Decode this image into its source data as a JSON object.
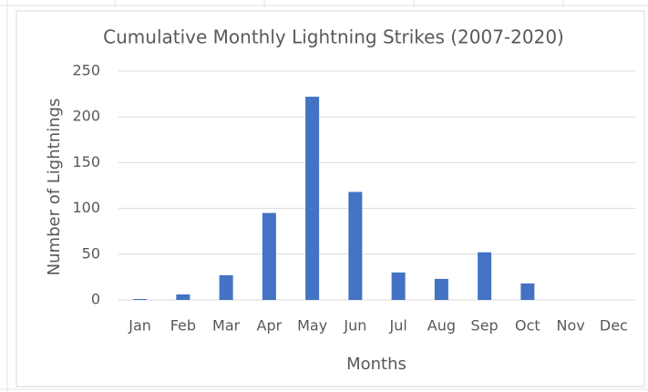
{
  "chart_data": {
    "type": "bar",
    "title": "Cumulative Monthly Lightning Strikes (2007-2020)",
    "x_label": "Months",
    "y_label": "Number of Lightnings",
    "categories": [
      "Jan",
      "Feb",
      "Mar",
      "Apr",
      "May",
      "Jun",
      "Jul",
      "Aug",
      "Sep",
      "Oct",
      "Nov",
      "Dec"
    ],
    "values": [
      1,
      6,
      27,
      95,
      222,
      118,
      30,
      23,
      52,
      18,
      0,
      0
    ],
    "color": "#4472c4",
    "ylim": [
      0,
      250
    ],
    "yticks": [
      0,
      50,
      100,
      150,
      200,
      250
    ],
    "grid": true
  }
}
